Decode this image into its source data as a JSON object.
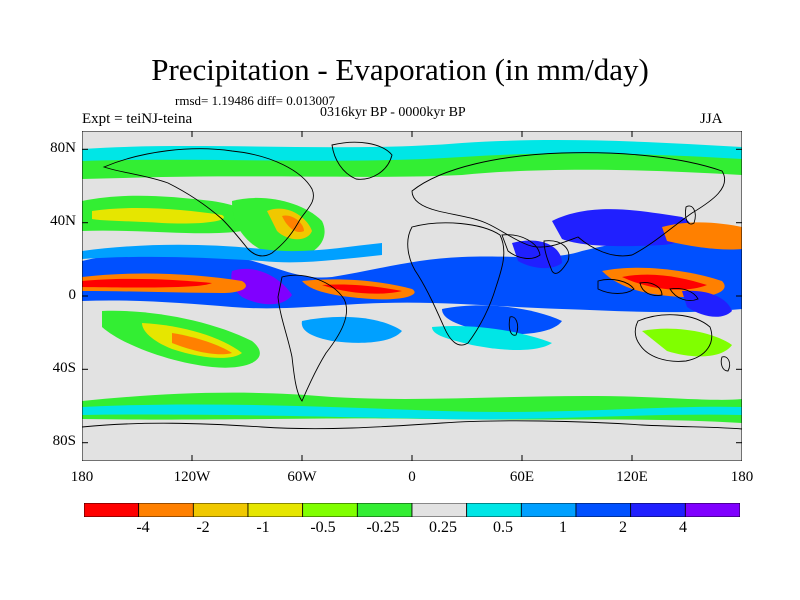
{
  "title": "Precipitation - Evaporation (in mm/day)",
  "stats_line": "rmsd= 1.19486 diff= 0.013007",
  "period_line": "0316kyr BP - 0000kyr BP",
  "experiment": "Expt = teiNJ-teina",
  "season": "JJA",
  "axes": {
    "y_ticks": [
      "80N",
      "40N",
      "0",
      "40S",
      "80S"
    ],
    "x_ticks": [
      "180",
      "120W",
      "60W",
      "0",
      "60E",
      "120E",
      "180"
    ]
  },
  "colorbar": {
    "colors": [
      "#ff0000",
      "#ff8000",
      "#f0c800",
      "#e6e600",
      "#80ff00",
      "#33ee33",
      "#e2e2e2",
      "#00e6e6",
      "#00a0ff",
      "#0050ff",
      "#2020ff",
      "#8000ff"
    ],
    "labels": [
      "-4",
      "-2",
      "-1",
      "-0.5",
      "-0.25",
      "0.25",
      "0.5",
      "1",
      "2",
      "4"
    ]
  }
}
